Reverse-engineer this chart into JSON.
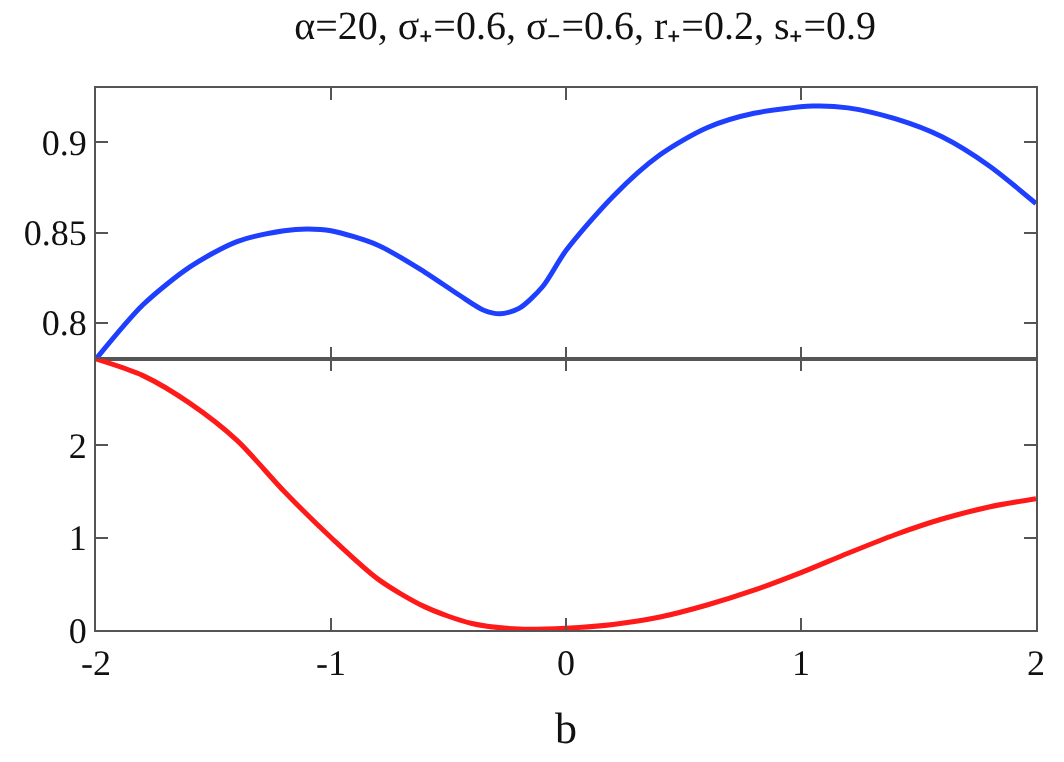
{
  "chart_data": [
    {
      "type": "line",
      "title": "α=20, σ₊=0.6, σ₋=0.6, r₊=0.2, s₊=0.9",
      "tick_labels": "y",
      "xlim": [
        -2,
        2
      ],
      "xticks": [
        -2,
        -1,
        0,
        1,
        2
      ],
      "ylim": [
        0.78,
        0.93
      ],
      "yticks": [
        0.8,
        0.85,
        0.9
      ],
      "x": [
        -2,
        -1.8,
        -1.6,
        -1.4,
        -1.2,
        -1.1,
        -1.0,
        -0.8,
        -0.6,
        -0.45,
        -0.35,
        -0.28,
        -0.2,
        -0.1,
        0,
        0.2,
        0.4,
        0.6,
        0.8,
        1.05,
        1.2,
        1.4,
        1.6,
        1.8,
        2.0
      ],
      "series": [
        {
          "color": "#1f3fff",
          "values": [
            0.78,
            0.81,
            0.831,
            0.845,
            0.851,
            0.852,
            0.851,
            0.843,
            0.828,
            0.815,
            0.807,
            0.805,
            0.808,
            0.82,
            0.84,
            0.87,
            0.893,
            0.908,
            0.916,
            0.92,
            0.919,
            0.913,
            0.903,
            0.887,
            0.866
          ]
        }
      ]
    },
    {
      "type": "line",
      "xlabel": "b",
      "xlim": [
        -2,
        2
      ],
      "xticks": [
        -2,
        -1,
        0,
        1,
        2
      ],
      "ylim": [
        0,
        2.93
      ],
      "yticks": [
        0,
        1,
        2
      ],
      "x": [
        -2,
        -1.8,
        -1.6,
        -1.4,
        -1.2,
        -1.0,
        -0.8,
        -0.6,
        -0.4,
        -0.2,
        0,
        0.2,
        0.4,
        0.6,
        0.8,
        1.0,
        1.2,
        1.4,
        1.6,
        1.8,
        2.0
      ],
      "series": [
        {
          "color": "#ff1a1a",
          "values": [
            2.93,
            2.75,
            2.45,
            2.05,
            1.5,
            1.0,
            0.55,
            0.25,
            0.07,
            0.01,
            0.02,
            0.06,
            0.14,
            0.27,
            0.43,
            0.62,
            0.83,
            1.03,
            1.2,
            1.33,
            1.42
          ]
        }
      ]
    }
  ]
}
